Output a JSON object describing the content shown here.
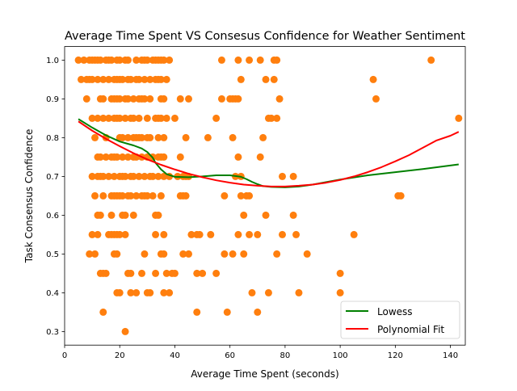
{
  "chart_data": {
    "type": "scatter",
    "title": "Average Time Spent VS Consesus Confidence for Weather Sentiment",
    "xlabel": "Average Time Spent (seconds)",
    "ylabel": "Task Consensus Confidence",
    "xlim": [
      0.0,
      145.4
    ],
    "ylim": [
      0.265,
      1.035
    ],
    "xticks": [
      0,
      20,
      40,
      60,
      80,
      100,
      120,
      140
    ],
    "yticks": [
      0.3,
      0.4,
      0.5,
      0.6,
      0.7,
      0.8,
      0.9,
      1.0
    ],
    "grid": false,
    "legend_position": "lower-right",
    "colors": {
      "points": "#ff7f0e",
      "lowess": "#008000",
      "poly": "#ff0000"
    },
    "points": [
      [
        5,
        1.0
      ],
      [
        7,
        1.0
      ],
      [
        9,
        1.0
      ],
      [
        10,
        1.0
      ],
      [
        11,
        1.0
      ],
      [
        12,
        1.0
      ],
      [
        13,
        1.0
      ],
      [
        15,
        1.0
      ],
      [
        16,
        1.0
      ],
      [
        17,
        1.0
      ],
      [
        19,
        1.0
      ],
      [
        20,
        1.0
      ],
      [
        22,
        1.0
      ],
      [
        23,
        1.0
      ],
      [
        26,
        1.0
      ],
      [
        28,
        1.0
      ],
      [
        29,
        1.0
      ],
      [
        30,
        1.0
      ],
      [
        32,
        1.0
      ],
      [
        33,
        1.0
      ],
      [
        34,
        1.0
      ],
      [
        35,
        1.0
      ],
      [
        36,
        1.0
      ],
      [
        38,
        1.0
      ],
      [
        57,
        1.0
      ],
      [
        63,
        1.0
      ],
      [
        67,
        1.0
      ],
      [
        71,
        1.0
      ],
      [
        76,
        1.0
      ],
      [
        77,
        1.0
      ],
      [
        133,
        1.0
      ],
      [
        6,
        0.95
      ],
      [
        8,
        0.95
      ],
      [
        9,
        0.95
      ],
      [
        10,
        0.95
      ],
      [
        12,
        0.95
      ],
      [
        14,
        0.95
      ],
      [
        16,
        0.95
      ],
      [
        18,
        0.95
      ],
      [
        19,
        0.95
      ],
      [
        20,
        0.95
      ],
      [
        21,
        0.95
      ],
      [
        23,
        0.95
      ],
      [
        24,
        0.95
      ],
      [
        26,
        0.95
      ],
      [
        27,
        0.95
      ],
      [
        29,
        0.95
      ],
      [
        31,
        0.95
      ],
      [
        33,
        0.95
      ],
      [
        34,
        0.95
      ],
      [
        35,
        0.95
      ],
      [
        37,
        0.95
      ],
      [
        64,
        0.95
      ],
      [
        73,
        0.95
      ],
      [
        76,
        0.95
      ],
      [
        112,
        0.95
      ],
      [
        8,
        0.9
      ],
      [
        13,
        0.9
      ],
      [
        14,
        0.9
      ],
      [
        17,
        0.9
      ],
      [
        18,
        0.9
      ],
      [
        19,
        0.9
      ],
      [
        20,
        0.9
      ],
      [
        22,
        0.9
      ],
      [
        23,
        0.9
      ],
      [
        25,
        0.9
      ],
      [
        27,
        0.9
      ],
      [
        28,
        0.9
      ],
      [
        29,
        0.9
      ],
      [
        31,
        0.9
      ],
      [
        35,
        0.9
      ],
      [
        36,
        0.9
      ],
      [
        42,
        0.9
      ],
      [
        45,
        0.9
      ],
      [
        57,
        0.9
      ],
      [
        60,
        0.9
      ],
      [
        61,
        0.9
      ],
      [
        62,
        0.9
      ],
      [
        63,
        0.9
      ],
      [
        78,
        0.9
      ],
      [
        113,
        0.9
      ],
      [
        10,
        0.85
      ],
      [
        12,
        0.85
      ],
      [
        14,
        0.85
      ],
      [
        16,
        0.85
      ],
      [
        18,
        0.85
      ],
      [
        19,
        0.85
      ],
      [
        20,
        0.85
      ],
      [
        22,
        0.85
      ],
      [
        24,
        0.85
      ],
      [
        25,
        0.85
      ],
      [
        27,
        0.85
      ],
      [
        30,
        0.85
      ],
      [
        33,
        0.85
      ],
      [
        34,
        0.85
      ],
      [
        35,
        0.85
      ],
      [
        37,
        0.85
      ],
      [
        40,
        0.85
      ],
      [
        55,
        0.85
      ],
      [
        74,
        0.85
      ],
      [
        75,
        0.85
      ],
      [
        77,
        0.85
      ],
      [
        143,
        0.85
      ],
      [
        11,
        0.8
      ],
      [
        15,
        0.8
      ],
      [
        20,
        0.8
      ],
      [
        21,
        0.8
      ],
      [
        23,
        0.8
      ],
      [
        25,
        0.8
      ],
      [
        26,
        0.8
      ],
      [
        27,
        0.8
      ],
      [
        28,
        0.8
      ],
      [
        30,
        0.8
      ],
      [
        31,
        0.8
      ],
      [
        34,
        0.8
      ],
      [
        36,
        0.8
      ],
      [
        44,
        0.8
      ],
      [
        52,
        0.8
      ],
      [
        61,
        0.8
      ],
      [
        72,
        0.8
      ],
      [
        12,
        0.75
      ],
      [
        13,
        0.75
      ],
      [
        15,
        0.75
      ],
      [
        17,
        0.75
      ],
      [
        18,
        0.75
      ],
      [
        19,
        0.75
      ],
      [
        21,
        0.75
      ],
      [
        23,
        0.75
      ],
      [
        25,
        0.75
      ],
      [
        26,
        0.75
      ],
      [
        28,
        0.75
      ],
      [
        30,
        0.75
      ],
      [
        32,
        0.75
      ],
      [
        34,
        0.75
      ],
      [
        35,
        0.75
      ],
      [
        36,
        0.75
      ],
      [
        42,
        0.75
      ],
      [
        63,
        0.75
      ],
      [
        71,
        0.75
      ],
      [
        10,
        0.7
      ],
      [
        12,
        0.7
      ],
      [
        13,
        0.7
      ],
      [
        14,
        0.7
      ],
      [
        16,
        0.7
      ],
      [
        18,
        0.7
      ],
      [
        20,
        0.7
      ],
      [
        21,
        0.7
      ],
      [
        22,
        0.7
      ],
      [
        24,
        0.7
      ],
      [
        25,
        0.7
      ],
      [
        27,
        0.7
      ],
      [
        29,
        0.7
      ],
      [
        31,
        0.7
      ],
      [
        32,
        0.7
      ],
      [
        34,
        0.7
      ],
      [
        36,
        0.7
      ],
      [
        38,
        0.7
      ],
      [
        41,
        0.7
      ],
      [
        43,
        0.7
      ],
      [
        44,
        0.7
      ],
      [
        45,
        0.7
      ],
      [
        62,
        0.7
      ],
      [
        64,
        0.7
      ],
      [
        79,
        0.7
      ],
      [
        83,
        0.7
      ],
      [
        11,
        0.65
      ],
      [
        14,
        0.65
      ],
      [
        17,
        0.65
      ],
      [
        18,
        0.65
      ],
      [
        19,
        0.65
      ],
      [
        20,
        0.65
      ],
      [
        21,
        0.65
      ],
      [
        23,
        0.65
      ],
      [
        24,
        0.65
      ],
      [
        26,
        0.65
      ],
      [
        28,
        0.65
      ],
      [
        29,
        0.65
      ],
      [
        30,
        0.65
      ],
      [
        32,
        0.65
      ],
      [
        35,
        0.65
      ],
      [
        42,
        0.65
      ],
      [
        43,
        0.65
      ],
      [
        44,
        0.65
      ],
      [
        58,
        0.65
      ],
      [
        64,
        0.65
      ],
      [
        66,
        0.65
      ],
      [
        67,
        0.65
      ],
      [
        121,
        0.65
      ],
      [
        122,
        0.65
      ],
      [
        12,
        0.6
      ],
      [
        13,
        0.6
      ],
      [
        17,
        0.6
      ],
      [
        21,
        0.6
      ],
      [
        22,
        0.6
      ],
      [
        25,
        0.6
      ],
      [
        33,
        0.6
      ],
      [
        34,
        0.6
      ],
      [
        65,
        0.6
      ],
      [
        73,
        0.6
      ],
      [
        83,
        0.6
      ],
      [
        10,
        0.55
      ],
      [
        12,
        0.55
      ],
      [
        16,
        0.55
      ],
      [
        17,
        0.55
      ],
      [
        18,
        0.55
      ],
      [
        19,
        0.55
      ],
      [
        20,
        0.55
      ],
      [
        22,
        0.55
      ],
      [
        33,
        0.55
      ],
      [
        36,
        0.55
      ],
      [
        46,
        0.55
      ],
      [
        48,
        0.55
      ],
      [
        49,
        0.55
      ],
      [
        53,
        0.55
      ],
      [
        63,
        0.55
      ],
      [
        67,
        0.55
      ],
      [
        70,
        0.55
      ],
      [
        79,
        0.55
      ],
      [
        84,
        0.55
      ],
      [
        105,
        0.55
      ],
      [
        9,
        0.5
      ],
      [
        11,
        0.5
      ],
      [
        18,
        0.5
      ],
      [
        19,
        0.5
      ],
      [
        29,
        0.5
      ],
      [
        35,
        0.5
      ],
      [
        36,
        0.5
      ],
      [
        43,
        0.5
      ],
      [
        45,
        0.5
      ],
      [
        58,
        0.5
      ],
      [
        61,
        0.5
      ],
      [
        65,
        0.5
      ],
      [
        77,
        0.5
      ],
      [
        88,
        0.5
      ],
      [
        13,
        0.45
      ],
      [
        14,
        0.45
      ],
      [
        15,
        0.45
      ],
      [
        23,
        0.45
      ],
      [
        24,
        0.45
      ],
      [
        28,
        0.45
      ],
      [
        33,
        0.45
      ],
      [
        37,
        0.45
      ],
      [
        39,
        0.45
      ],
      [
        40,
        0.45
      ],
      [
        48,
        0.45
      ],
      [
        50,
        0.45
      ],
      [
        55,
        0.45
      ],
      [
        100,
        0.45
      ],
      [
        19,
        0.4
      ],
      [
        20,
        0.4
      ],
      [
        24,
        0.4
      ],
      [
        26,
        0.4
      ],
      [
        30,
        0.4
      ],
      [
        31,
        0.4
      ],
      [
        36,
        0.4
      ],
      [
        38,
        0.4
      ],
      [
        68,
        0.4
      ],
      [
        74,
        0.4
      ],
      [
        85,
        0.4
      ],
      [
        100,
        0.4
      ],
      [
        14,
        0.35
      ],
      [
        48,
        0.35
      ],
      [
        59,
        0.35
      ],
      [
        70,
        0.35
      ],
      [
        22,
        0.3
      ]
    ],
    "series": [
      {
        "name": "Lowess",
        "color": "#008000",
        "x": [
          5,
          10,
          15,
          20,
          25,
          28,
          30,
          32,
          33,
          35,
          37,
          40,
          45,
          50,
          55,
          60,
          62,
          64,
          66,
          68,
          70,
          72,
          75,
          80,
          85,
          90,
          100,
          110,
          120,
          130,
          143
        ],
        "y": [
          0.848,
          0.826,
          0.806,
          0.79,
          0.78,
          0.772,
          0.763,
          0.748,
          0.735,
          0.718,
          0.706,
          0.699,
          0.698,
          0.7,
          0.703,
          0.703,
          0.701,
          0.699,
          0.693,
          0.686,
          0.68,
          0.675,
          0.673,
          0.672,
          0.674,
          0.679,
          0.692,
          0.703,
          0.711,
          0.719,
          0.731
        ]
      },
      {
        "name": "Polynomial Fit",
        "color": "#ff0000",
        "x": [
          5,
          10,
          15,
          20,
          25,
          30,
          35,
          40,
          45,
          50,
          55,
          60,
          65,
          70,
          75,
          80,
          85,
          90,
          95,
          100,
          105,
          110,
          115,
          120,
          125,
          130,
          135,
          140,
          143
        ],
        "y": [
          0.842,
          0.818,
          0.797,
          0.778,
          0.76,
          0.744,
          0.73,
          0.718,
          0.707,
          0.698,
          0.69,
          0.684,
          0.679,
          0.676,
          0.674,
          0.674,
          0.676,
          0.679,
          0.684,
          0.691,
          0.7,
          0.711,
          0.724,
          0.739,
          0.755,
          0.774,
          0.793,
          0.805,
          0.815
        ]
      }
    ]
  }
}
